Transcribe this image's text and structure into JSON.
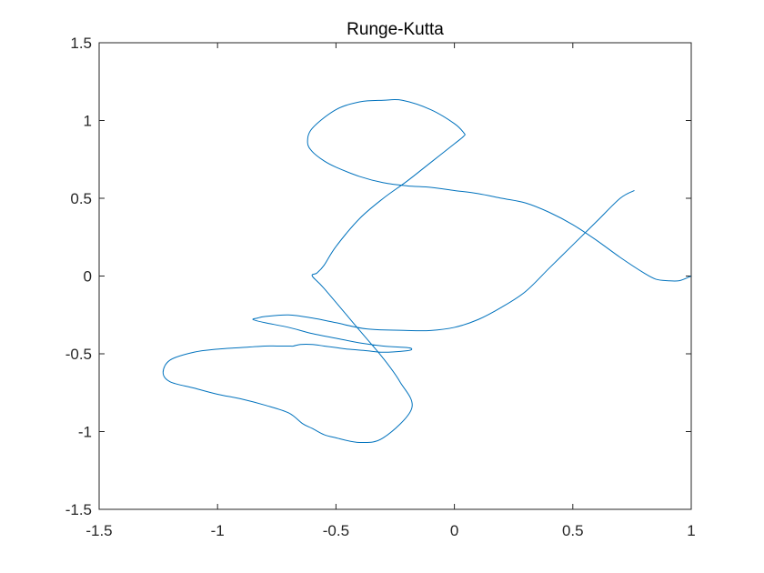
{
  "chart_data": {
    "type": "line",
    "title": "Runge-Kutta",
    "xlabel": "",
    "ylabel": "",
    "xlim": [
      -1.5,
      1
    ],
    "ylim": [
      -1.5,
      1.5
    ],
    "xticks": [
      -1.5,
      -1,
      -0.5,
      0,
      0.5,
      1
    ],
    "yticks": [
      -1.5,
      -1,
      -0.5,
      0,
      0.5,
      1,
      1.5
    ],
    "xtick_labels": [
      "-1.5",
      "-1",
      "-0.5",
      "0",
      "0.5",
      "1"
    ],
    "ytick_labels": [
      "-1.5",
      "-1",
      "-0.5",
      "0",
      "0.5",
      "1",
      "1.5"
    ],
    "grid": false,
    "series": [
      {
        "color": "#0072BD",
        "x": [
          1.0,
          0.95,
          0.9,
          0.85,
          0.8,
          0.7,
          0.6,
          0.5,
          0.4,
          0.3,
          0.2,
          0.1,
          0.0,
          -0.1,
          -0.2,
          -0.3,
          -0.4,
          -0.5,
          -0.55,
          -0.6,
          -0.62,
          -0.6,
          -0.5,
          -0.4,
          -0.3,
          -0.22,
          -0.1,
          0.0,
          0.04,
          0.04,
          0.0,
          -0.1,
          -0.2,
          -0.3,
          -0.4,
          -0.5,
          -0.55,
          -0.58,
          -0.6,
          -0.55,
          -0.4,
          -0.3,
          -0.23,
          -0.18,
          -0.3,
          -0.4,
          -0.5,
          -0.55,
          -0.6,
          -0.64,
          -0.7,
          -0.8,
          -0.9,
          -1.0,
          -1.1,
          -1.2,
          -1.23,
          -1.2,
          -1.1,
          -1.0,
          -0.9,
          -0.8,
          -0.75,
          -0.7,
          -0.68,
          -0.65,
          -0.6,
          -0.55,
          -0.5,
          -0.45,
          -0.37,
          -0.3,
          -0.2,
          -0.18,
          -0.2,
          -0.3,
          -0.4,
          -0.5,
          -0.6,
          -0.7,
          -0.8,
          -0.85,
          -0.83,
          -0.8,
          -0.7,
          -0.6,
          -0.5,
          -0.37,
          -0.2,
          -0.1,
          0.0,
          0.1,
          0.2,
          0.3,
          0.4,
          0.5,
          0.6,
          0.7,
          0.76
        ],
        "y": [
          0.0,
          -0.03,
          -0.03,
          -0.02,
          0.02,
          0.12,
          0.23,
          0.33,
          0.41,
          0.47,
          0.5,
          0.53,
          0.55,
          0.57,
          0.58,
          0.6,
          0.64,
          0.7,
          0.74,
          0.8,
          0.86,
          0.95,
          1.07,
          1.12,
          1.13,
          1.13,
          1.07,
          0.98,
          0.92,
          0.9,
          0.85,
          0.73,
          0.61,
          0.5,
          0.37,
          0.19,
          0.07,
          0.02,
          0.0,
          -0.08,
          -0.35,
          -0.53,
          -0.68,
          -0.85,
          -1.04,
          -1.07,
          -1.04,
          -1.02,
          -0.98,
          -0.95,
          -0.88,
          -0.83,
          -0.79,
          -0.76,
          -0.72,
          -0.68,
          -0.62,
          -0.54,
          -0.49,
          -0.47,
          -0.46,
          -0.45,
          -0.45,
          -0.45,
          -0.45,
          -0.44,
          -0.44,
          -0.45,
          -0.46,
          -0.47,
          -0.48,
          -0.49,
          -0.48,
          -0.47,
          -0.46,
          -0.45,
          -0.43,
          -0.4,
          -0.37,
          -0.33,
          -0.3,
          -0.28,
          -0.27,
          -0.26,
          -0.25,
          -0.27,
          -0.3,
          -0.34,
          -0.35,
          -0.35,
          -0.33,
          -0.28,
          -0.2,
          -0.1,
          0.05,
          0.2,
          0.35,
          0.5,
          0.55
        ]
      }
    ]
  }
}
